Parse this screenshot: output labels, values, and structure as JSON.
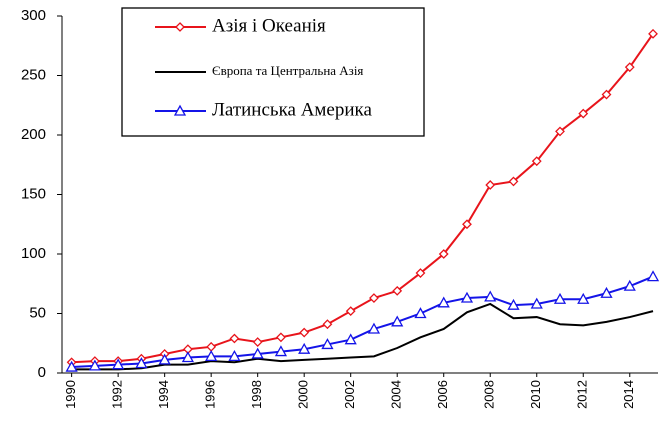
{
  "chart_data": {
    "type": "line",
    "x": [
      1990,
      1991,
      1992,
      1993,
      1994,
      1995,
      1996,
      1997,
      1998,
      1999,
      2000,
      2001,
      2002,
      2003,
      2004,
      2005,
      2006,
      2007,
      2008,
      2009,
      2010,
      2011,
      2012,
      2013,
      2014,
      2015
    ],
    "series": [
      {
        "name": "Азія і Океанія",
        "color": "#e8141b",
        "marker": "diamond",
        "values": [
          9,
          10,
          10,
          12,
          16,
          20,
          22,
          29,
          26,
          30,
          34,
          41,
          52,
          63,
          69,
          84,
          100,
          125,
          158,
          161,
          178,
          203,
          218,
          234,
          257,
          285
        ]
      },
      {
        "name": "Європа та Центральна Азія",
        "color": "#000000",
        "marker": "none",
        "values": [
          3,
          3,
          3,
          4,
          7,
          7,
          10,
          9,
          12,
          10,
          11,
          12,
          13,
          14,
          21,
          30,
          37,
          51,
          58,
          46,
          47,
          41,
          40,
          43,
          47,
          52
        ]
      },
      {
        "name": "Латинська Америка",
        "color": "#1414e8",
        "marker": "triangle",
        "values": [
          5,
          6,
          7,
          8,
          11,
          13,
          14,
          14,
          16,
          18,
          20,
          24,
          28,
          37,
          43,
          50,
          59,
          63,
          64,
          57,
          58,
          62,
          62,
          67,
          73,
          81
        ]
      }
    ],
    "xlim": [
      1989.5,
      2015.3
    ],
    "xticks": [
      1990,
      1992,
      1994,
      1996,
      1998,
      2000,
      2002,
      2004,
      2006,
      2008,
      2010,
      2012,
      2014
    ],
    "ylim": [
      0,
      300
    ],
    "yticks": [
      0,
      50,
      100,
      150,
      200,
      250,
      300
    ],
    "grid": false
  }
}
